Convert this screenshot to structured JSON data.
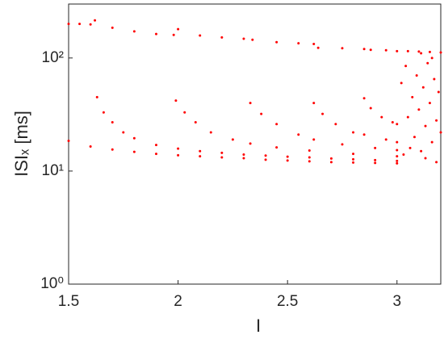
{
  "chart_data": {
    "type": "scatter",
    "x_label": "I",
    "y_label": "ISIₓ [ms]",
    "xlim": [
      1.5,
      3.2
    ],
    "xticks": [
      1.5,
      2,
      2.5,
      3
    ],
    "ylim": [
      1,
      300
    ],
    "y_scale": "log",
    "yticks": [
      {
        "value": 1,
        "label": "10⁰"
      },
      {
        "value": 10,
        "label": "10¹"
      },
      {
        "value": 100,
        "label": "10²"
      }
    ],
    "series": [
      {
        "color": "#ff0000",
        "x": [
          1.5,
          1.55,
          1.6,
          1.62,
          1.7,
          1.8,
          1.9,
          1.98,
          2.0,
          2.1,
          2.2,
          2.3,
          2.34,
          2.45,
          2.55,
          2.62,
          2.64,
          2.75,
          2.85,
          2.88,
          2.95,
          3.0,
          3.05,
          3.1,
          3.15,
          3.2,
          1.5,
          1.6,
          1.7,
          1.8,
          1.9,
          2.0,
          2.1,
          2.2,
          2.3,
          2.4,
          2.5,
          2.6,
          2.7,
          2.8,
          2.9,
          3.0,
          1.63,
          1.66,
          1.7,
          1.75,
          1.8,
          1.9,
          2.0,
          2.1,
          2.2,
          2.3,
          2.4,
          2.5,
          2.6,
          2.7,
          2.8,
          2.9,
          3.0,
          1.99,
          2.03,
          2.08,
          2.15,
          2.25,
          2.33,
          2.45,
          2.6,
          2.8,
          3.0,
          2.33,
          2.38,
          2.45,
          2.55,
          2.62,
          2.75,
          2.9,
          3.0,
          2.62,
          2.66,
          2.72,
          2.8,
          2.85,
          2.95,
          3.0,
          2.85,
          2.88,
          2.93,
          2.98,
          3.0,
          3.02,
          3.04,
          3.05,
          3.07,
          3.08,
          3.09,
          3.1,
          3.11,
          3.12,
          3.13,
          3.14,
          3.15,
          3.16,
          3.17,
          3.18,
          3.19,
          3.2,
          3.03,
          3.06,
          3.13,
          3.18,
          3.11,
          3.16
        ],
        "values": [
          200,
          200,
          198,
          215,
          185,
          172,
          163,
          160,
          180,
          158,
          152,
          148,
          145,
          138,
          135,
          133,
          123,
          122,
          120,
          118,
          117,
          115,
          115,
          114,
          113,
          112,
          18.5,
          16.5,
          15.5,
          14.8,
          14.2,
          13.8,
          13.5,
          13.2,
          13.0,
          12.6,
          12.4,
          12.2,
          12.0,
          11.9,
          11.8,
          11.7,
          45,
          33,
          27,
          22,
          19.5,
          17,
          15.8,
          15,
          14.5,
          14,
          13.7,
          13.4,
          13.2,
          12.9,
          12.7,
          12.5,
          12.3,
          42,
          33,
          27,
          22,
          19,
          17.5,
          16.2,
          15.2,
          14.2,
          13.5,
          40,
          32,
          26,
          21,
          19,
          17.2,
          16,
          15.3,
          40,
          32,
          26,
          22,
          21,
          19,
          18,
          44,
          36,
          30,
          27,
          26,
          60,
          85,
          30,
          45,
          20,
          70,
          35,
          15,
          55,
          25,
          90,
          40,
          18,
          65,
          28,
          50,
          22,
          14,
          16,
          13,
          12,
          110,
          100
        ]
      }
    ]
  }
}
